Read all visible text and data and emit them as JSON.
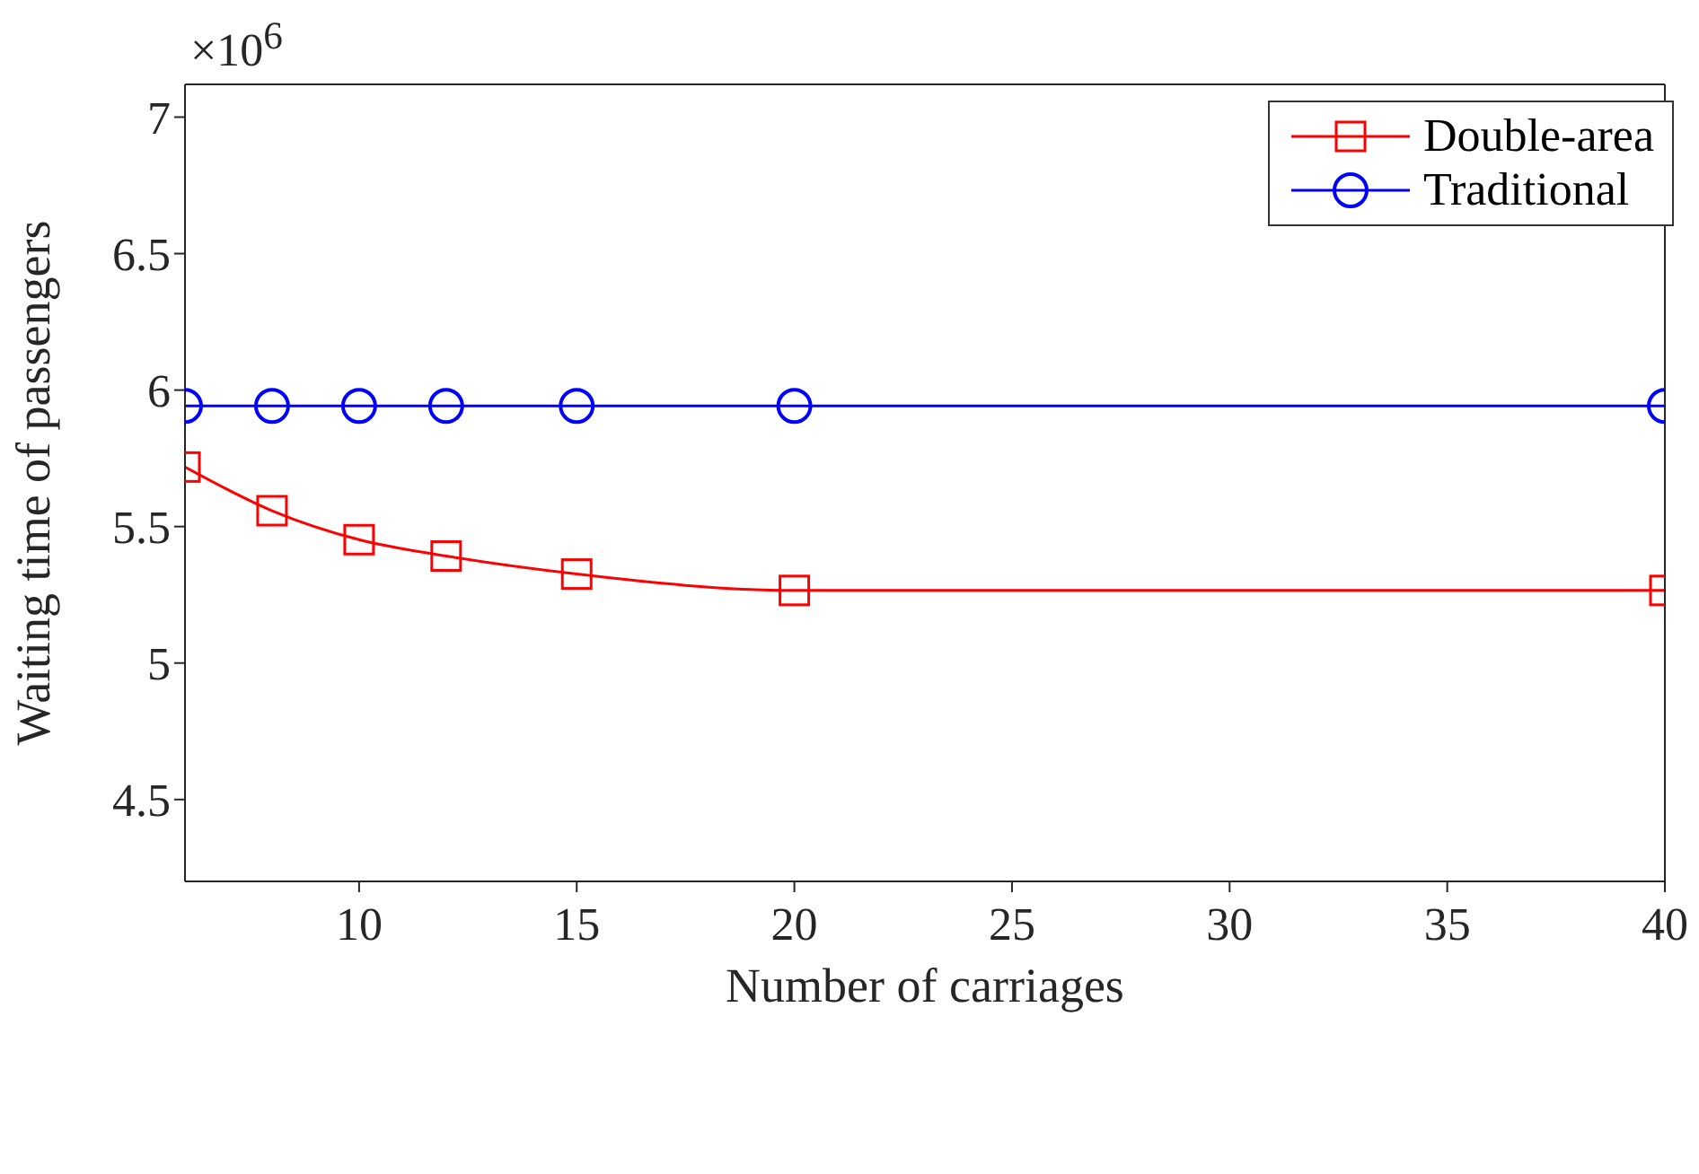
{
  "chart_data": {
    "type": "line",
    "xlabel": "Number of carriages",
    "ylabel": "Waiting time of passengers",
    "annotations": [
      "×10$^{6}$"
    ],
    "xlim": [
      6,
      40
    ],
    "xticks": [
      10,
      15,
      20,
      25,
      30,
      35,
      40
    ],
    "ylim": [
      4.2,
      7.12
    ],
    "yticks": [
      4.5,
      5,
      5.5,
      6,
      6.5,
      7
    ],
    "legend": "top right",
    "series": [
      {
        "name": "Double-area",
        "color": "#ff0000",
        "marker": "square",
        "x": [
          6,
          8,
          10,
          12,
          15,
          20,
          40
        ],
        "values": [
          5.718,
          5.558,
          5.452,
          5.392,
          5.326,
          5.266,
          5.266
        ]
      },
      {
        "name": "Traditional",
        "color": "#0000ff",
        "marker": "circle",
        "x": [
          6,
          8,
          10,
          12,
          15,
          20,
          40
        ],
        "values": [
          5.942,
          5.942,
          5.942,
          5.942,
          5.942,
          5.942,
          5.942
        ]
      }
    ]
  }
}
